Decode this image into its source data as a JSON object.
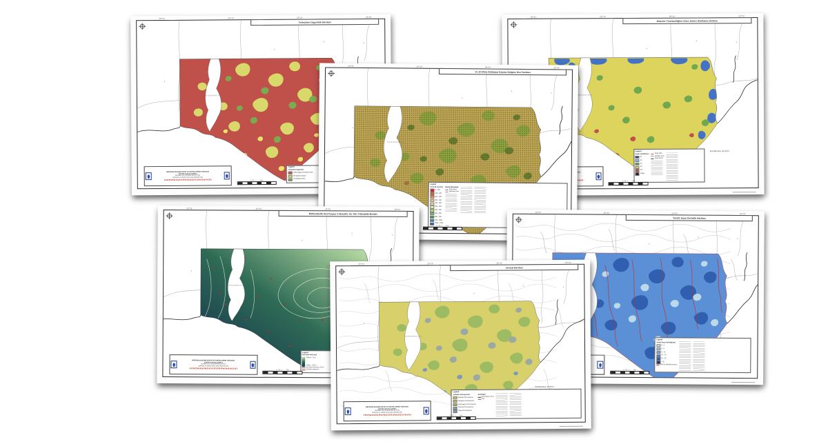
{
  "shared": {
    "legend_header": "Legend",
    "lagoon_label": "KÜÇÜKÇEKMECE GÖLÜ",
    "sea_label": "MARMARA DENİZİ",
    "coord_ticks": [
      "28°35'",
      "28°40'",
      "28°45'",
      "28°50'"
    ],
    "scale_label": "0   0.5   1         2 km",
    "credit": {
      "line1": "MİKROBÖLGELEME RAPOR VE HARİTALARININ YAPILMASI",
      "line2": "AVRUPA YAKASI (GÜNEY)",
      "line3": "İSTANBUL BÜYÜKŞEHİR BELEDİYESİ",
      "line4": "DEPREM VE ZEMİN İNCELEME MÜDÜRLÜĞÜ"
    }
  },
  "maps": [
    {
      "title": "Yerleşime Uygunluk Haritası",
      "palette": {
        "base": "#c0504a",
        "p1": "#d8d96a",
        "p2": "#7aab4e",
        "p3": "#e8e26a"
      },
      "legend": {
        "subtitle": "Yerleşime Uygunluk",
        "items": [
          {
            "c": "#c0504a",
            "t": "UOA (Uygun Olmayan Alan)"
          },
          {
            "c": "#e8e26a",
            "t": "ÖA (Önlemli Alan)"
          },
          {
            "c": "#7aab4e",
            "t": "UA (Uygun Alan)"
          }
        ]
      }
    },
    {
      "title": "Vs (0-30m) Ortalama Kayma Dalgası Hızı Haritası",
      "palette": {
        "base": "#c2a855",
        "p1": "#8fa53f",
        "p2": "#6b7f2e",
        "p3": "#a97b3c"
      },
      "legend": {
        "subtitle": "Vs (0-30 m) (m/s)",
        "names_header": "Büyük Mahalleler",
        "ramp": [
          {
            "c": "#d7191c",
            "t": "0 - 150"
          },
          {
            "c": "#e85b3a",
            "t": "150 - 200"
          },
          {
            "c": "#f99d59",
            "t": "200 - 250"
          },
          {
            "c": "#fec980",
            "t": "250 - 300"
          },
          {
            "c": "#ffedaa",
            "t": "300 - 350"
          },
          {
            "c": "#e7f5b0",
            "t": "350 - 400"
          },
          {
            "c": "#b7e075",
            "t": "400 - 450"
          },
          {
            "c": "#7cc463",
            "t": "450 - 550"
          },
          {
            "c": "#38a154",
            "t": "550 - 700"
          },
          {
            "c": "#3288bd",
            "t": "700 - 1000"
          },
          {
            "c": "#2b5cb0",
            "t": "1000 - 1400"
          }
        ],
        "lines": [
          {
            "line": "#c05050",
            "t": "Proje Alanı"
          },
          {
            "line": "#888888",
            "t": "Mahalle Sınırı"
          }
        ]
      }
    },
    {
      "title": "Deprem Yönetmeliğine Göre Zemin Sınıflama Haritası",
      "palette": {
        "base": "#ddd45e",
        "p1": "#4472c4",
        "p2": "#6fa84f",
        "p3": "#c0504a"
      },
      "legend": {
        "subtitle": "Zemin Sınıflaması",
        "items": [
          {
            "c": "#2b4ea8",
            "t": "Z1"
          },
          {
            "c": "#7ec8e3",
            "t": "Z2"
          },
          {
            "c": "#6fa84f",
            "t": "Z3"
          },
          {
            "c": "#ddd45e",
            "t": "Z4"
          },
          {
            "c": "#c0504a",
            "t": "Z4*"
          },
          {
            "c": "#222222",
            "t": "Dolgu"
          }
        ],
        "lines": [
          {
            "line": "#c05050",
            "t": "Proje Alanı"
          },
          {
            "line": "#888888",
            "t": "Mahalle Sınırı"
          },
          {
            "line": "#333333",
            "t": "Sahil Şeridi"
          }
        ]
      }
    },
    {
      "title": "Mühendislik Ana Kayası 3 Boyutlu Yer Altı Yükseklik Modeli",
      "palette": {
        "gA": "#bfe0a8",
        "gB": "#2e6b55",
        "gC": "#142f4e",
        "marker": "#cc2222",
        "contour": "#e8f0dd"
      },
      "legend": {
        "subtitle": "Ana Kaya Kotu (m)",
        "high": "Yüksek : 75 m",
        "low": "Düşük : -200 m",
        "lines": [
          {
            "line": "#556b2f",
            "t": "Ana Kaya Konturu (10 m)"
          },
          {
            "line": "#cc2222",
            "t": "Sondaj Lokasyonu"
          }
        ]
      }
    },
    {
      "title": "Jeoloji Haritası",
      "palette": {
        "base": "#d8d06a",
        "p1": "#9dbb63",
        "p2": "#9aa9a4",
        "p3": "#7a98c0"
      },
      "legend": {
        "subtitle": "Jeolojik Formasyonlar",
        "symbols_header": "Semboller",
        "items": [
          {
            "c": "#d8d06a",
            "t": "Bakırköy Formasyonu"
          },
          {
            "c": "#c9bf55",
            "t": "Güngören Formasyonu"
          },
          {
            "c": "#9dbb63",
            "t": "Çukurçeşme Formasyonu"
          },
          {
            "c": "#9aa9a4",
            "t": "Gürpınar Formasyonu"
          },
          {
            "c": "#7a98c0",
            "t": "Trakya Formasyonu"
          }
        ],
        "lines": [
          {
            "line": "#333333",
            "t": "Formasyon Sınırı"
          },
          {
            "line": "#c05050",
            "t": "Fay"
          }
        ]
      }
    },
    {
      "title": "Yeraltı Suyu Derinlik Haritası",
      "palette": {
        "base": "#5b8fd6",
        "p1": "#2f5fae",
        "p2": "#bcd9ea",
        "p3": "#c03030"
      },
      "legend": {
        "subtitle": "Yeraltı Suyu Derinliği (m)",
        "items": [
          {
            "c": "#d6ecf8",
            "t": "0 - 3"
          },
          {
            "c": "#a8d2ee",
            "t": "3 - 5"
          },
          {
            "c": "#6fb0e0",
            "t": "5 - 10"
          },
          {
            "c": "#3f7fc9",
            "t": "10 - 15"
          },
          {
            "c": "#2458a8",
            "t": "15 - 20"
          },
          {
            "c": "#12306e",
            "t": "> 20"
          }
        ],
        "lines": [
          {
            "line": "#c03030",
            "t": "YAS Eş Derinlik Konturu"
          }
        ]
      }
    }
  ]
}
